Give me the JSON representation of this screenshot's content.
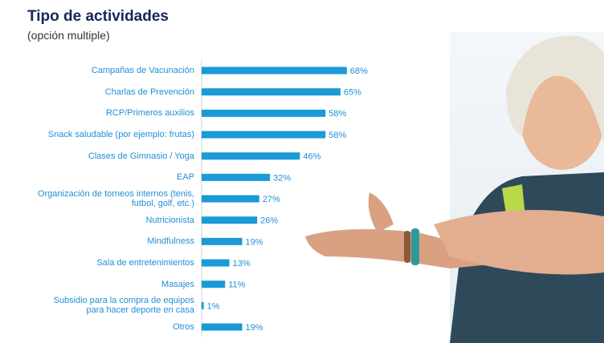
{
  "chart_data": {
    "type": "hbar",
    "title": "Tipo de actividades",
    "subtitle": "(opción multiple)",
    "categories": [
      "Campañas de Vacunación",
      "Charlas de Prevención",
      "RCP/Primeros auxilios",
      "Snack saludable (por ejemplo: frutas)",
      "Clases de Gimnasio / Yoga",
      "EAP",
      "Organización de torneos internos (tenis,\nfutbol, golf, etc.)",
      "Nutricionista",
      "Mindfulness",
      "Sala de entretenimientos",
      "Masajes",
      "Subsidio para la compra de equipos\npara hacer deporte en casa",
      "Otros"
    ],
    "values": [
      68,
      65,
      58,
      58,
      46,
      32,
      27,
      26,
      19,
      13,
      11,
      1,
      19
    ],
    "value_labels": [
      "68%",
      "65%",
      "58%",
      "58%",
      "46%",
      "32%",
      "27%",
      "26%",
      "19%",
      "13%",
      "11%",
      "1%",
      "19%"
    ],
    "color": "#1a9ad7",
    "xlim": [
      0,
      100
    ]
  }
}
